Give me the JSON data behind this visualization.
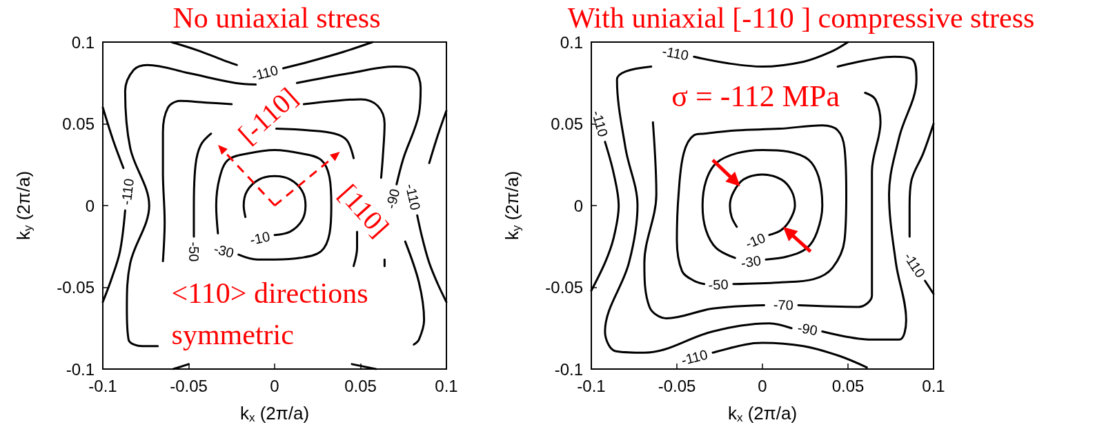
{
  "chart_data": [
    {
      "type": "line",
      "title": "No uniaxial stress",
      "xlabel": "k$_{x}$ (2π/a)",
      "ylabel": "k$_{y}$ (2π/a)",
      "xlim": [
        -0.1,
        0.1
      ],
      "ylim": [
        -0.1,
        0.1
      ],
      "xticks": [
        -0.1,
        -0.05,
        0,
        0.05,
        0.1
      ],
      "yticks": [
        -0.1,
        -0.05,
        0,
        0.05,
        0.1
      ],
      "grid": false,
      "legend": false,
      "marker": "none",
      "line_style": "solid",
      "annotations": [
        "[-110]",
        "[110]",
        "<110> directions symmetric"
      ],
      "series": [
        {
          "name": "-10",
          "color": "#000000",
          "x": [
            0,
            0.009,
            0.016,
            0.018,
            0.016,
            0.009,
            0,
            -0.009,
            -0.016,
            -0.018,
            -0.017
          ],
          "values": [
            -0.018,
            -0.016,
            -0.009,
            0,
            0.009,
            0.016,
            0.018,
            0.016,
            0.009,
            0,
            -0.007
          ]
        },
        {
          "name": "-30",
          "color": "#000000",
          "x": [
            -0.021,
            -0.01,
            0,
            0.015,
            0.027,
            0.032,
            0.033,
            0.032,
            0.027,
            0.015,
            0,
            -0.015,
            -0.027,
            -0.032,
            -0.034,
            -0.033
          ],
          "values": [
            -0.03,
            -0.033,
            -0.033,
            -0.032,
            -0.028,
            -0.017,
            0,
            0.017,
            0.028,
            0.032,
            0.034,
            0.032,
            0.028,
            0.017,
            0,
            -0.017
          ]
        },
        {
          "name": "-50",
          "color": "#000000",
          "x": [
            -0.047,
            -0.047,
            -0.046,
            -0.043,
            -0.037
          ],
          "values": [
            -0.019,
            0,
            0.025,
            0.037,
            0.044
          ]
        },
        {
          "color": "#000000",
          "x": [
            0.001,
            0.02,
            0.035,
            0.042,
            0.046
          ],
          "values": [
            0.047,
            0.046,
            0.044,
            0.04,
            0.029
          ]
        },
        {
          "color": "#000000",
          "x": [
            0.048,
            0.048,
            0.046
          ],
          "values": [
            -0.016,
            -0.026,
            -0.037
          ]
        },
        {
          "color": "#000000",
          "x": [
            -0.065,
            -0.064,
            -0.065,
            -0.065,
            -0.062,
            -0.055,
            -0.04,
            -0.025
          ],
          "values": [
            -0.034,
            -0.01,
            0.02,
            0.045,
            0.06,
            0.064,
            0.063,
            0.062
          ]
        },
        {
          "color": "#000000",
          "x": [
            0.017,
            0.035,
            0.05,
            0.06,
            0.064,
            0.063,
            0.062
          ],
          "values": [
            0.062,
            0.064,
            0.065,
            0.061,
            0.05,
            0.03,
            0.017
          ]
        },
        {
          "color": "#000000",
          "x": [
            0.064,
            0.064
          ],
          "values": [
            -0.033,
            -0.037
          ]
        },
        {
          "name": "-90",
          "color": "#000000",
          "x": [
            0.071,
            0.075,
            0.084,
            0.085,
            0.081,
            0.07,
            0.044,
            0.013
          ],
          "values": [
            0.013,
            0.029,
            0.056,
            0.072,
            0.083,
            0.085,
            0.081,
            0.075
          ]
        },
        {
          "color": "#000000",
          "x": [
            -0.011,
            -0.023,
            -0.05,
            -0.074,
            -0.082,
            -0.087,
            -0.084,
            -0.073,
            -0.084,
            -0.086,
            -0.085,
            -0.077,
            -0.068
          ],
          "values": [
            0.074,
            0.075,
            0.081,
            0.086,
            0.083,
            0.07,
            0.035,
            0,
            -0.035,
            -0.063,
            -0.082,
            -0.086,
            -0.086
          ]
        },
        {
          "color": "#000000",
          "x": [
            0.076,
            0.084,
            0.087,
            0.084,
            0.081
          ],
          "values": [
            -0.022,
            -0.047,
            -0.07,
            -0.082,
            -0.085
          ]
        },
        {
          "name": "-110",
          "color": "#000000",
          "x": [
            0.005,
            0.02,
            0.04,
            0.057
          ],
          "values": [
            0.084,
            0.088,
            0.094,
            0.1
          ]
        },
        {
          "color": "#000000",
          "x": [
            -0.022,
            -0.03,
            -0.045,
            -0.06
          ],
          "values": [
            0.086,
            0.089,
            0.095,
            0.1
          ]
        },
        {
          "name": "-110",
          "color": "#000000",
          "x": [
            -0.087,
            -0.09,
            -0.095,
            -0.1
          ],
          "values": [
            -0.003,
            -0.028,
            -0.045,
            -0.059
          ]
        },
        {
          "color": "#000000",
          "x": [
            -0.088,
            -0.094,
            -0.1
          ],
          "values": [
            0.023,
            0.04,
            0.06
          ]
        },
        {
          "name": "-110",
          "color": "#000000",
          "x": [
            0.083,
            0.086,
            0.09,
            0.095,
            0.1
          ],
          "values": [
            -0.006,
            -0.02,
            -0.035,
            -0.048,
            -0.059
          ]
        },
        {
          "color": "#000000",
          "x": [
            0.09,
            0.095,
            0.1
          ],
          "values": [
            0.026,
            0.043,
            0.058
          ]
        },
        {
          "color": "#000000",
          "x": [
            -0.059,
            -0.05
          ],
          "values": [
            -0.1,
            -0.097
          ]
        },
        {
          "color": "#000000",
          "x": [
            0.045,
            0.059
          ],
          "values": [
            -0.097,
            -0.1
          ]
        }
      ]
    },
    {
      "type": "line",
      "title": "With uniaxial [-110 ] compressive stress",
      "xlabel": "k$_{x}$ (2π/a)",
      "ylabel": "k$_{y}$ (2π/a)",
      "xlim": [
        -0.1,
        0.1
      ],
      "ylim": [
        -0.1,
        0.1
      ],
      "xticks": [
        -0.1,
        -0.05,
        0,
        0.05,
        0.1
      ],
      "yticks": [
        -0.1,
        -0.05,
        0,
        0.05,
        0.1
      ],
      "grid": false,
      "legend": false,
      "marker": "none",
      "line_style": "solid",
      "annotations": [
        "σ = -112 MPa"
      ],
      "series": [
        {
          "name": "-10",
          "color": "#000000",
          "x": [
            0.004,
            0.011,
            0.016,
            0.019,
            0.017,
            0.011,
            0,
            -0.011,
            -0.017,
            -0.019,
            -0.018,
            -0.015
          ],
          "values": [
            -0.018,
            -0.015,
            -0.009,
            0,
            0.009,
            0.016,
            0.019,
            0.016,
            0.008,
            0,
            -0.007,
            -0.013
          ]
        },
        {
          "name": "-30",
          "color": "#000000",
          "x": [
            0.002,
            0.015,
            0.026,
            0.032,
            0.035,
            0.033,
            0.027,
            0.015,
            0,
            -0.015,
            -0.027,
            -0.033,
            -0.035,
            -0.033,
            -0.027,
            -0.016
          ],
          "values": [
            -0.033,
            -0.031,
            -0.026,
            -0.016,
            0,
            0.017,
            0.028,
            0.033,
            0.034,
            0.032,
            0.026,
            0.015,
            0,
            -0.015,
            -0.026,
            -0.032
          ]
        },
        {
          "name": "-50",
          "color": "#000000",
          "x": [
            -0.017,
            0.01,
            0.03,
            0.041,
            0.048,
            0.049,
            0.048,
            0.044,
            0.035,
            0.01,
            -0.015,
            -0.034,
            -0.04,
            -0.046,
            -0.049,
            -0.05,
            -0.047,
            -0.04,
            -0.034
          ],
          "values": [
            -0.048,
            -0.047,
            -0.045,
            -0.038,
            -0.021,
            0.007,
            0.035,
            0.046,
            0.049,
            0.047,
            0.046,
            0.044,
            0.043,
            0.032,
            0.007,
            -0.021,
            -0.04,
            -0.046,
            -0.048
          ]
        },
        {
          "name": "-70",
          "color": "#000000",
          "x": [
            0.021,
            0.056,
            0.064,
            0.064,
            0.064,
            0.069,
            0.066,
            0.06
          ],
          "values": [
            -0.061,
            -0.062,
            -0.055,
            -0.021,
            0.021,
            0.051,
            0.065,
            0.069
          ]
        },
        {
          "color": "#000000",
          "x": [
            0.001,
            -0.029,
            -0.056,
            -0.066,
            -0.069,
            -0.062,
            -0.064
          ],
          "values": [
            -0.061,
            -0.063,
            -0.069,
            -0.062,
            -0.035,
            0.007,
            0.051
          ]
        },
        {
          "name": "-90",
          "color": "#000000",
          "x": [
            0.035,
            0.064,
            0.08,
            0.084,
            0.078,
            0.074,
            0.08,
            0.09,
            0.088,
            0.077,
            0.044
          ],
          "values": [
            -0.077,
            -0.082,
            -0.082,
            -0.07,
            -0.035,
            0.007,
            0.042,
            0.077,
            0.089,
            0.091,
            0.085
          ]
        },
        {
          "color": "#000000",
          "x": [
            0.017,
            0.004,
            -0.029,
            -0.069,
            -0.086,
            -0.092,
            -0.078,
            -0.073,
            -0.08,
            -0.085,
            -0.08,
            -0.065
          ],
          "values": [
            -0.075,
            -0.072,
            -0.077,
            -0.09,
            -0.089,
            -0.077,
            -0.035,
            0,
            0.035,
            0.077,
            0.082,
            0.085
          ]
        },
        {
          "name": "-110",
          "color": "#000000",
          "x": [
            -0.04,
            -0.02,
            0,
            0.024,
            0.04,
            0.05
          ],
          "values": [
            0.091,
            0.087,
            0.085,
            0.088,
            0.094,
            0.1
          ]
        },
        {
          "name": "-110",
          "color": "#000000",
          "x": [
            -0.092,
            -0.087,
            -0.084,
            -0.087,
            -0.092,
            -0.1
          ],
          "values": [
            0.039,
            0.02,
            0,
            -0.02,
            -0.035,
            -0.052
          ]
        },
        {
          "name": "-110",
          "color": "#000000",
          "x": [
            -0.029,
            -0.01,
            0,
            0.024,
            0.045,
            0.061
          ],
          "values": [
            -0.09,
            -0.085,
            -0.084,
            -0.086,
            -0.092,
            -0.099
          ]
        },
        {
          "name": "-110",
          "color": "#000000",
          "x": [
            0.095,
            0.1
          ],
          "values": [
            -0.046,
            -0.054
          ]
        },
        {
          "color": "#000000",
          "x": [
            0.1,
            0.094,
            0.087,
            0.086,
            0.086
          ],
          "values": [
            0.05,
            0.032,
            0.015,
            0,
            -0.019
          ]
        }
      ]
    }
  ]
}
